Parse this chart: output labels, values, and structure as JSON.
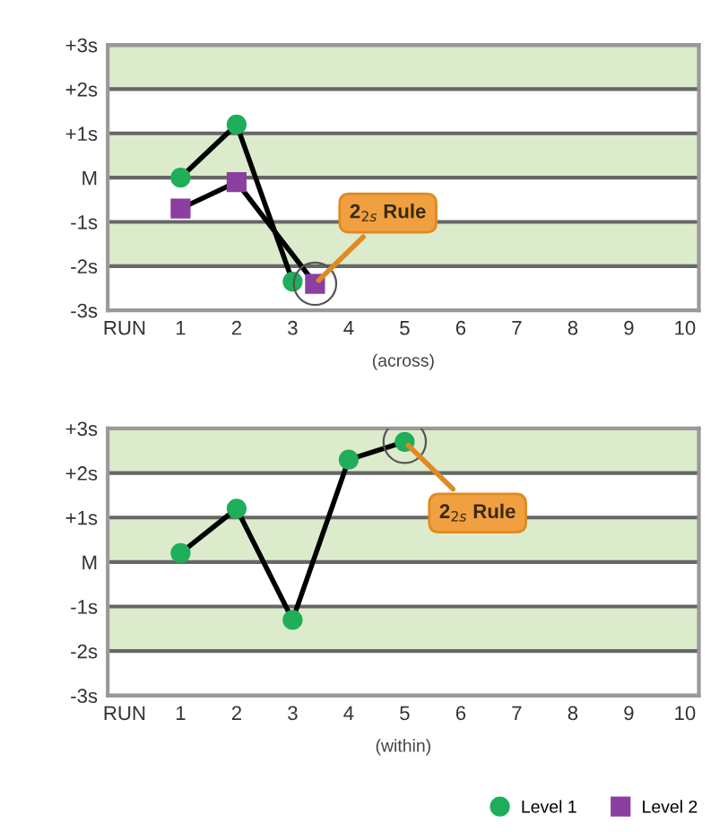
{
  "chart_data": [
    {
      "type": "line",
      "xlabel": "(across)",
      "xlim": [
        -0.3,
        10.25
      ],
      "xticks": [
        {
          "value": 0,
          "label": "RUN"
        },
        1,
        2,
        3,
        4,
        5,
        6,
        7,
        8,
        9,
        10
      ],
      "ylim": [
        -3,
        3
      ],
      "yticks": [
        {
          "value": -3,
          "label": "-3s"
        },
        {
          "value": -2,
          "label": "-2s"
        },
        {
          "value": -1,
          "label": "-1s"
        },
        {
          "value": 0,
          "label": "M"
        },
        {
          "value": 1,
          "label": "+1s"
        },
        {
          "value": 2,
          "label": "+2s"
        },
        {
          "value": 3,
          "label": "+3s"
        }
      ],
      "grid": "y",
      "legend": "bottom right",
      "line_style": "solid",
      "bands": [
        {
          "axis": "y",
          "from": 2,
          "to": 3,
          "color": "#dcebcb"
        },
        {
          "axis": "y",
          "from": 0,
          "to": 1,
          "color": "#dcebcb"
        },
        {
          "axis": "y",
          "from": -2,
          "to": -1,
          "color": "#dcebcb"
        }
      ],
      "series": [
        {
          "name": "Level 1",
          "color": "#1fae5a",
          "marker": "circle",
          "x": [
            1,
            2,
            3
          ],
          "values": [
            0,
            1.2,
            -2.35
          ]
        },
        {
          "name": "Level 2",
          "color": "#8b3fa0",
          "marker": "square",
          "x": [
            1,
            2,
            3.4
          ],
          "values": [
            -0.7,
            -0.1,
            -2.4
          ]
        }
      ],
      "annotations": [
        {
          "text": "2$_{2s}$ Rule",
          "x": 3.4,
          "y": -2.4
        }
      ]
    },
    {
      "type": "line",
      "xlabel": "(within)",
      "xlim": [
        -0.3,
        10.25
      ],
      "xticks": [
        {
          "value": 0,
          "label": "RUN"
        },
        1,
        2,
        3,
        4,
        5,
        6,
        7,
        8,
        9,
        10
      ],
      "ylim": [
        -3,
        3
      ],
      "yticks": [
        {
          "value": -3,
          "label": "-3s"
        },
        {
          "value": -2,
          "label": "-2s"
        },
        {
          "value": -1,
          "label": "-1s"
        },
        {
          "value": 0,
          "label": "M"
        },
        {
          "value": 1,
          "label": "+1s"
        },
        {
          "value": 2,
          "label": "+2s"
        },
        {
          "value": 3,
          "label": "+3s"
        }
      ],
      "grid": "y",
      "line_style": "solid",
      "bands": [
        {
          "axis": "y",
          "from": 2,
          "to": 3,
          "color": "#dcebcb"
        },
        {
          "axis": "y",
          "from": 0,
          "to": 1,
          "color": "#dcebcb"
        },
        {
          "axis": "y",
          "from": -2,
          "to": -1,
          "color": "#dcebcb"
        }
      ],
      "series": [
        {
          "color": "#1fae5a",
          "marker": "circle",
          "x": [
            1,
            2,
            3,
            4,
            5
          ],
          "values": [
            0.2,
            1.2,
            -1.3,
            2.3,
            2.7
          ]
        }
      ],
      "annotations": [
        {
          "text": "2$_{2s}$ Rule",
          "x": 5,
          "y": 2.7
        }
      ]
    }
  ]
}
